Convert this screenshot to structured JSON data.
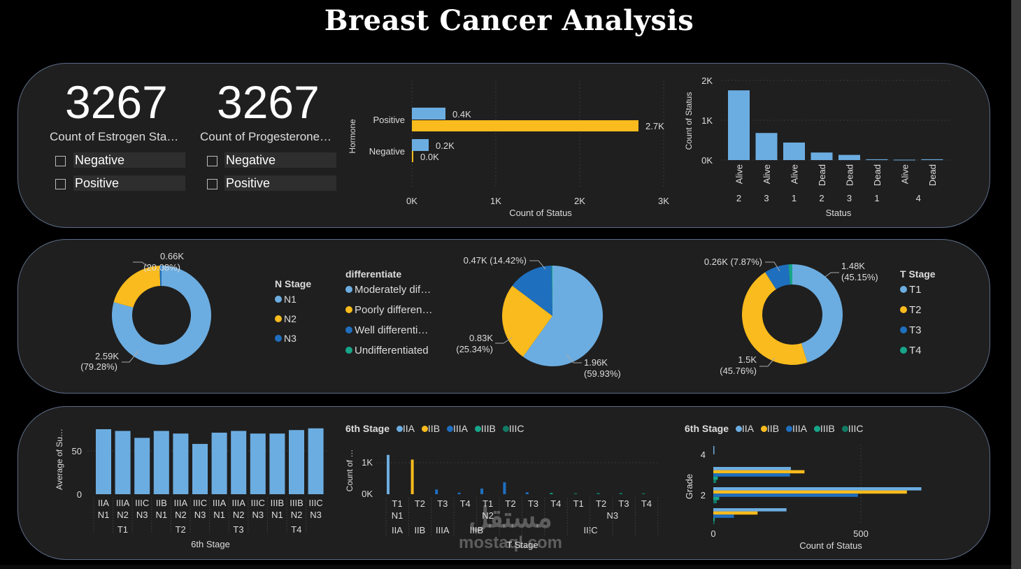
{
  "title": "Breast Cancer Analysis",
  "colors": {
    "blue": "#6cade1",
    "yellow": "#f9bb1d",
    "dark_blue": "#1f6fbf",
    "teal": "#17a589",
    "panel": "#1f1f1f",
    "border": "#5b6b86"
  },
  "kpis": [
    {
      "value": "3267",
      "label": "Count of Estrogen Sta…",
      "options": [
        "Negative",
        "Positive"
      ]
    },
    {
      "value": "3267",
      "label": "Count of Progesterone…",
      "options": [
        "Negative",
        "Positive"
      ]
    }
  ],
  "hormone_chart": {
    "ylabel": "Hormone",
    "xlabel": "Count of Status",
    "x_ticks": [
      "0K",
      "1K",
      "2K",
      "3K"
    ],
    "categories": [
      "Positive",
      "Negative"
    ],
    "blue_values": [
      0.4,
      0.2
    ],
    "yellow_values": [
      2.7,
      0.0
    ],
    "blue_labels": [
      "0.4K",
      "0.2K"
    ],
    "yellow_labels": [
      "2.7K",
      "0.0K"
    ]
  },
  "status_chart": {
    "ylabel": "Count of Status",
    "xlabel": "Status",
    "y_ticks": [
      "0K",
      "1K",
      "2K"
    ],
    "bars": [
      {
        "status": "Alive",
        "value": 1.75
      },
      {
        "status": "Alive",
        "value": 0.68
      },
      {
        "status": "Alive",
        "value": 0.44
      },
      {
        "status": "Dead",
        "value": 0.19
      },
      {
        "status": "Dead",
        "value": 0.13
      },
      {
        "status": "Dead",
        "value": 0.02
      },
      {
        "status": "Alive",
        "value": 0.01
      },
      {
        "status": "Dead",
        "value": 0.02
      }
    ],
    "groups": [
      {
        "label": "2",
        "span": 1
      },
      {
        "label": "3",
        "span": 1
      },
      {
        "label": "1",
        "span": 1
      },
      {
        "label": "2",
        "span": 1
      },
      {
        "label": "3",
        "span": 1
      },
      {
        "label": "1",
        "span": 1
      },
      {
        "label": "4",
        "span": 2
      }
    ]
  },
  "n_stage": {
    "legend_title": "N Stage",
    "labels": [
      "N1",
      "N2",
      "N3"
    ],
    "values": [
      79.28,
      20.08,
      0.64
    ],
    "label_big": [
      "2.59K",
      "0.66K"
    ],
    "label_pct": [
      "(79.28%)",
      "(20.08%)"
    ]
  },
  "differentiate": {
    "legend_title": "differentiate",
    "labels": [
      "Moderately dif…",
      "Poorly differen…",
      "Well differenti…",
      "Undifferentiated"
    ],
    "values": [
      59.93,
      25.34,
      14.42,
      0.31
    ],
    "label_a": "1.96K",
    "label_a_pct": "(59.93%)",
    "label_b": "0.83K",
    "label_b_pct": "(25.34%)",
    "label_c": "0.47K (14.42%)"
  },
  "t_stage": {
    "legend_title": "T Stage",
    "labels": [
      "T1",
      "T2",
      "T3",
      "T4"
    ],
    "values": [
      45.15,
      45.76,
      7.87,
      1.22
    ],
    "label_a": "1.48K",
    "label_a_pct": "(45.15%)",
    "label_b": "1.5K",
    "label_b_pct": "(45.76%)",
    "label_c": "0.26K (7.87%)"
  },
  "survival_chart": {
    "ylabel": "Average of Su…",
    "xlabel": "6th Stage",
    "y_ticks": [
      "0",
      "50"
    ],
    "bars": [
      {
        "stage": "IIA",
        "n": "N1",
        "value": 75
      },
      {
        "stage": "IIIA",
        "n": "N2",
        "value": 73
      },
      {
        "stage": "IIIC",
        "n": "N3",
        "value": 65
      },
      {
        "stage": "IIB",
        "n": "N1",
        "value": 73
      },
      {
        "stage": "IIIA",
        "n": "N2",
        "value": 70
      },
      {
        "stage": "IIIC",
        "n": "N3",
        "value": 58
      },
      {
        "stage": "IIIA",
        "n": "N1",
        "value": 71
      },
      {
        "stage": "IIIA",
        "n": "N2",
        "value": 73
      },
      {
        "stage": "IIIC",
        "n": "N3",
        "value": 70
      },
      {
        "stage": "IIIB",
        "n": "N1",
        "value": 70
      },
      {
        "stage": "IIIB",
        "n": "N2",
        "value": 74
      },
      {
        "stage": "IIIC",
        "n": "N3",
        "value": 76
      }
    ],
    "t_groups": [
      "T1",
      "T2",
      "T3",
      "T4"
    ]
  },
  "tstage_chart": {
    "legend_title": "6th Stage",
    "legend": [
      "IIA",
      "IIB",
      "IIIA",
      "IIIB",
      "IIIC"
    ],
    "ylabel": "Count of …",
    "xlabel": "T Stage",
    "y_ticks": [
      "0K",
      "1K"
    ],
    "cols": [
      "T1",
      "T2",
      "T3",
      "T4",
      "T1",
      "T2",
      "T3",
      "T4",
      "T1",
      "T2",
      "T3",
      "T4"
    ],
    "n_groups": [
      {
        "label": "N1",
        "span": 4
      },
      {
        "label": "N2",
        "span": 4
      },
      {
        "label": "N3",
        "span": 4
      }
    ],
    "stage_groups": [
      {
        "label": "IIA",
        "span": 1
      },
      {
        "label": "IIB",
        "span": 1
      },
      {
        "label": "IIIA",
        "span": 1
      },
      {
        "label": "IIIB",
        "span": 2
      },
      {
        "label": "IIIC",
        "span": 3
      }
    ],
    "bars": [
      {
        "col": 0,
        "series": 0,
        "value": 1.25
      },
      {
        "col": 1,
        "series": 1,
        "value": 1.1
      },
      {
        "col": 2,
        "series": 2,
        "value": 0.15
      },
      {
        "col": 3,
        "series": 2,
        "value": 0.05
      },
      {
        "col": 4,
        "series": 2,
        "value": 0.18
      },
      {
        "col": 5,
        "series": 2,
        "value": 0.38
      },
      {
        "col": 6,
        "series": 2,
        "value": 0.06
      },
      {
        "col": 7,
        "series": 3,
        "value": 0.04
      },
      {
        "col": 8,
        "series": 4,
        "value": 0.03
      },
      {
        "col": 9,
        "series": 4,
        "value": 0.04
      },
      {
        "col": 10,
        "series": 4,
        "value": 0.04
      },
      {
        "col": 11,
        "series": 4,
        "value": 0.03
      }
    ]
  },
  "grade_chart": {
    "legend_title": "6th Stage",
    "legend": [
      "IIA",
      "IIB",
      "IIIA",
      "IIIB",
      "IIIC"
    ],
    "ylabel": "Grade",
    "xlabel": "Count of Status",
    "x_ticks": [
      "0",
      "500"
    ],
    "y_ticks": [
      "4",
      "2",
      "2"
    ],
    "groups": [
      {
        "grade": 4,
        "values": [
          3,
          0,
          0,
          0,
          0
        ]
      },
      {
        "grade": 3,
        "values": [
          263,
          309,
          260,
          15,
          10
        ]
      },
      {
        "grade": 2,
        "values": [
          705,
          656,
          490,
          20,
          12
        ]
      },
      {
        "grade": 1,
        "values": [
          248,
          150,
          70,
          5,
          3
        ]
      }
    ]
  },
  "watermark": {
    "arabic": "مستقل",
    "latin": "mostaql.com"
  }
}
